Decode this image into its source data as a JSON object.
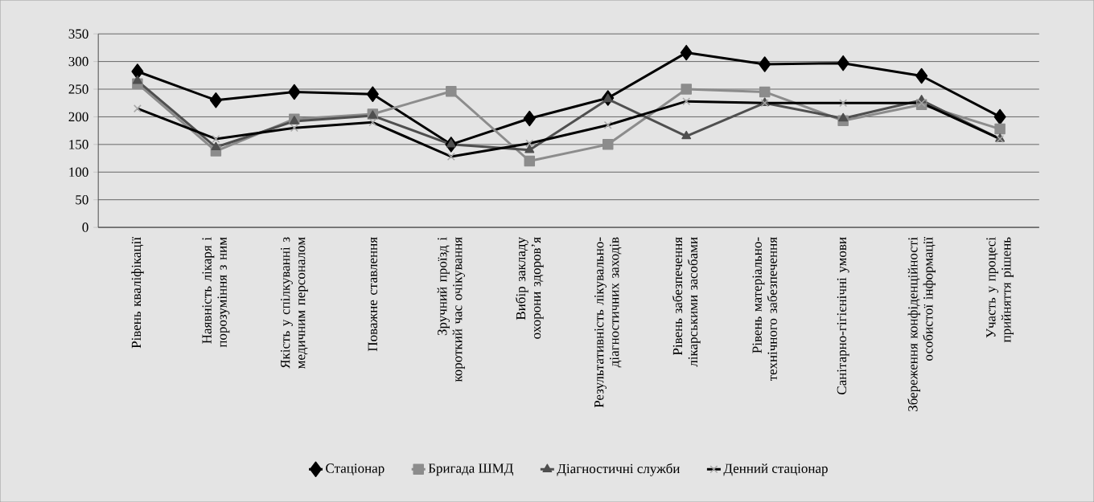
{
  "chart_data": {
    "type": "line",
    "categories": [
      "Рівень кваліфікації",
      "Наявність лікаря і порозуміння з ним",
      "Якість у спілкуванні з медичним персоналом",
      "Поважне ставлення",
      "Зручний проїзд і короткий час очікування",
      "Вибір закладу охорони здоров’я",
      "Результативність лікувально-діагностичних заходів",
      "Рівень забезпечення лікарськими засобами",
      "Рівень матеріально-технічного забезпечення",
      "Санітарно-гігієнічні умови",
      "Збереження конфіденційності особистої інформації",
      "Участь у процесі прийняття рішень"
    ],
    "series": [
      {
        "name": "Стаціонар",
        "color": "#000000",
        "marker": "diamond",
        "values": [
          282,
          230,
          245,
          241,
          150,
          197,
          234,
          316,
          295,
          297,
          274,
          200
        ]
      },
      {
        "name": "Бригада ШМД",
        "color": "#8c8c8c",
        "marker": "square",
        "values": [
          260,
          138,
          196,
          205,
          246,
          120,
          150,
          250,
          245,
          193,
          222,
          178
        ]
      },
      {
        "name": "Діагностичні служби",
        "color": "#4f4f4f",
        "marker": "triangle",
        "values": [
          265,
          145,
          192,
          202,
          150,
          140,
          232,
          165,
          225,
          197,
          230,
          160
        ]
      },
      {
        "name": "Денний стаціонар",
        "color": "#000000",
        "marker": "cross",
        "values": [
          215,
          160,
          180,
          190,
          128,
          152,
          185,
          228,
          225,
          225,
          225,
          160
        ]
      }
    ],
    "ylim": [
      0,
      350
    ],
    "yticks": [
      0,
      50,
      100,
      150,
      200,
      250,
      300,
      350
    ],
    "grid": "y",
    "legend": "bottom",
    "line_style": "solid"
  }
}
